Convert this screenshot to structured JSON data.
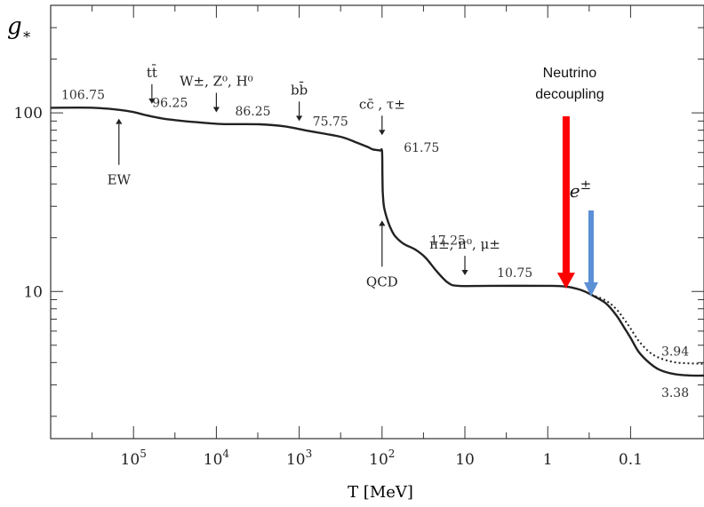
{
  "chart_data": {
    "type": "line",
    "ylabel": "g*",
    "xlabel": "T [MeV]",
    "x_scale": "log-reversed",
    "y_scale": "log",
    "xlim": [
      1000000,
      0.013
    ],
    "ylim": [
      1.5,
      400
    ],
    "x_ticks": [
      {
        "value": 100000,
        "label": "10^5"
      },
      {
        "value": 10000,
        "label": "10^4"
      },
      {
        "value": 1000,
        "label": "10^3"
      },
      {
        "value": 100,
        "label": "10^2"
      },
      {
        "value": 10,
        "label": "10"
      },
      {
        "value": 1,
        "label": "1"
      },
      {
        "value": 0.1,
        "label": "0.1"
      }
    ],
    "y_ticks": [
      {
        "value": 100,
        "label": "100"
      },
      {
        "value": 10,
        "label": "10"
      }
    ],
    "series": [
      {
        "style": "solid",
        "color": "#222222",
        "points": [
          [
            1000000,
            106.75
          ],
          [
            300000,
            106.75
          ],
          [
            150000,
            104
          ],
          [
            100000,
            101
          ],
          [
            70000,
            97
          ],
          [
            45000,
            93
          ],
          [
            25000,
            90
          ],
          [
            12000,
            87.5
          ],
          [
            8000,
            86.5
          ],
          [
            3000,
            86.25
          ],
          [
            1500,
            84
          ],
          [
            800,
            79.5
          ],
          [
            500,
            76.5
          ],
          [
            300,
            73
          ],
          [
            200,
            68
          ],
          [
            150,
            64.5
          ],
          [
            130,
            62.5
          ],
          [
            110,
            61.75
          ],
          [
            105,
            61.5
          ],
          [
            100,
            61
          ],
          [
            99,
            45
          ],
          [
            98,
            36
          ],
          [
            95,
            30
          ],
          [
            88,
            26
          ],
          [
            80,
            23
          ],
          [
            70,
            20.5
          ],
          [
            55,
            18.5
          ],
          [
            40,
            17.2
          ],
          [
            30,
            15.5
          ],
          [
            22,
            13
          ],
          [
            16,
            11.2
          ],
          [
            12,
            10.75
          ],
          [
            5,
            10.75
          ],
          [
            1,
            10.75
          ],
          [
            0.6,
            10.65
          ],
          [
            0.4,
            10.2
          ],
          [
            0.3,
            9.6
          ],
          [
            0.2,
            8.6
          ],
          [
            0.15,
            7.4
          ],
          [
            0.12,
            6.3
          ],
          [
            0.1,
            5.5
          ],
          [
            0.08,
            4.6
          ],
          [
            0.06,
            4.0
          ],
          [
            0.045,
            3.65
          ],
          [
            0.03,
            3.45
          ],
          [
            0.02,
            3.39
          ],
          [
            0.013,
            3.38
          ]
        ]
      },
      {
        "style": "dotted",
        "color": "#222222",
        "points": [
          [
            0.3,
            9.6
          ],
          [
            0.2,
            8.9
          ],
          [
            0.15,
            8.0
          ],
          [
            0.12,
            7.0
          ],
          [
            0.1,
            6.2
          ],
          [
            0.08,
            5.3
          ],
          [
            0.06,
            4.6
          ],
          [
            0.045,
            4.25
          ],
          [
            0.03,
            4.02
          ],
          [
            0.02,
            3.96
          ],
          [
            0.013,
            3.94
          ]
        ]
      }
    ],
    "value_labels": [
      {
        "text": "106.75",
        "x": 350000,
        "y": 106.75
      },
      {
        "text": "96.25",
        "x": 42000,
        "y": 96.25
      },
      {
        "text": "86.25",
        "x": 4000,
        "y": 86.25
      },
      {
        "text": "75.75",
        "x": 420,
        "y": 75.75
      },
      {
        "text": "61.75",
        "x": 70,
        "y": 61.75
      },
      {
        "text": "17.25",
        "x": 32,
        "y": 17.25
      },
      {
        "text": "10.75",
        "x": 2.5,
        "y": 10.75
      },
      {
        "text": "3.94",
        "x": 0.025,
        "y": 3.94
      },
      {
        "text": "3.38",
        "x": 0.025,
        "y": 3.38
      }
    ],
    "annotations": [
      {
        "text": "tt̄",
        "x": 60000,
        "y": 105,
        "direction": "down"
      },
      {
        "text": "W±, Z⁰, H⁰",
        "x": 10000,
        "y": 94,
        "direction": "down"
      },
      {
        "text": "bb̄",
        "x": 1000,
        "y": 84,
        "direction": "down"
      },
      {
        "text": "cc̄ , τ±",
        "x": 100,
        "y": 70,
        "direction": "down"
      },
      {
        "text": "EW",
        "x": 150000,
        "y": 104,
        "direction": "up"
      },
      {
        "text": "QCD",
        "x": 100,
        "y": 28,
        "direction": "up"
      },
      {
        "text": "π±, π⁰, μ±",
        "x": 10,
        "y": 11.5,
        "direction": "down"
      }
    ],
    "callouts": [
      {
        "text_lines": [
          "Neutrino",
          "decoupling"
        ],
        "x": 0.6,
        "y": 10.6,
        "color": "#ff0000"
      },
      {
        "text": "e±",
        "x": 0.3,
        "y": 9.6,
        "color": "#5b8fd6"
      }
    ]
  }
}
